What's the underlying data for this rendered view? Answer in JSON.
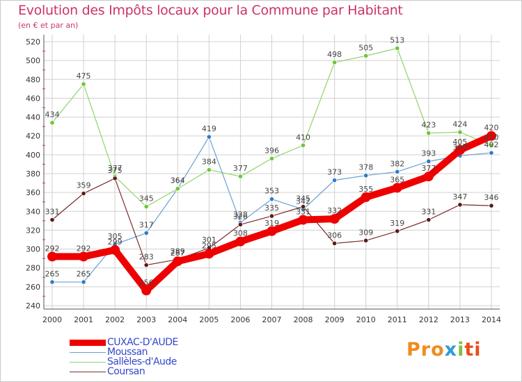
{
  "header": {
    "title": "Evolution des Impôts locaux pour la Commune par Habitant",
    "subtitle": "(en € et par an)"
  },
  "logo": {
    "p1": "Pro",
    "p2": "x",
    "p3": "i",
    "p4": "ti"
  },
  "colors": {
    "title": "#cc3366",
    "grid": "#d0d0d0",
    "legend_text": "#3347cc"
  },
  "chart_data": {
    "type": "line",
    "title": "Evolution des Impôts locaux pour la Commune par Habitant",
    "subtitle": "(en € et par an)",
    "xlabel": "",
    "ylabel": "",
    "x": [
      2000,
      2001,
      2002,
      2003,
      2004,
      2005,
      2006,
      2007,
      2008,
      2009,
      2010,
      2011,
      2012,
      2013,
      2014
    ],
    "y_ticks": [
      240,
      260,
      280,
      300,
      320,
      340,
      360,
      380,
      400,
      420,
      440,
      460,
      480,
      500,
      520
    ],
    "ylim": [
      240,
      520
    ],
    "grid": true,
    "legend_position": "bottom-left",
    "series": [
      {
        "name": "CUXAC-D'AUDE",
        "color": "#ee0000",
        "marker": "#ee0000",
        "values": [
          292,
          292,
          299,
          256,
          287,
          295,
          308,
          319,
          331,
          332,
          355,
          365,
          377,
          405,
          420
        ],
        "labels": [
          "292",
          "292",
          "299",
          "256",
          "287",
          "295",
          "308",
          "319",
          "331",
          "332",
          "355",
          "365",
          "377",
          "405",
          "420"
        ]
      },
      {
        "name": "Moussan",
        "color": "#6a9fd4",
        "marker": "#2e7cc4",
        "values": [
          265,
          265,
          305,
          317,
          364,
          419,
          328,
          353,
          342,
          373,
          378,
          382,
          393,
          399,
          402
        ],
        "labels": [
          "265",
          "265",
          "305",
          "317",
          "364",
          "419",
          "328",
          "353",
          "342",
          "373",
          "378",
          "382",
          "393",
          "399",
          "402"
        ]
      },
      {
        "name": "Sallèles-d'Aude",
        "color": "#8fd46a",
        "marker": "#6cc63b",
        "values": [
          434,
          475,
          377,
          345,
          364,
          384,
          377,
          396,
          410,
          498,
          505,
          513,
          423,
          424,
          410
        ],
        "labels": [
          "434",
          "475",
          "377",
          "345",
          "364",
          "384",
          "377",
          "396",
          "410",
          "498",
          "505",
          "513",
          "423",
          "424",
          "410"
        ]
      },
      {
        "name": "Coursan",
        "color": "#7a2b2b",
        "marker": "#5a1a1a",
        "values": [
          331,
          359,
          375,
          283,
          289,
          301,
          326,
          335,
          345,
          306,
          309,
          319,
          331,
          347,
          346
        ],
        "labels": [
          "331",
          "359",
          "375",
          "283",
          "289",
          "301",
          "326",
          "335",
          "345",
          "306",
          "309",
          "319",
          "331",
          "347",
          "346"
        ]
      }
    ]
  }
}
